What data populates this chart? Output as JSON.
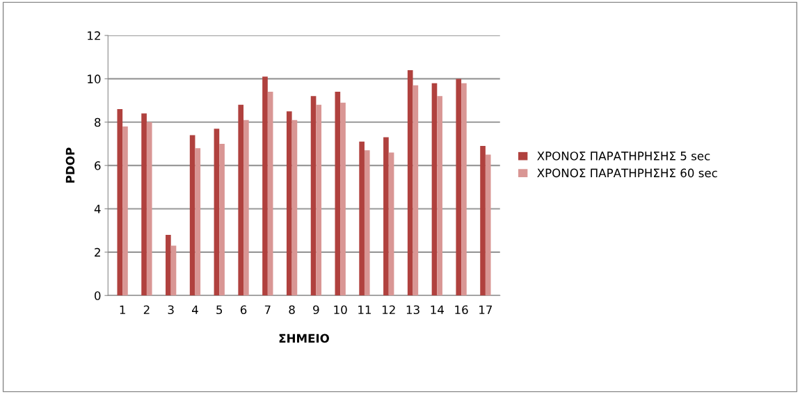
{
  "chart_data": {
    "type": "bar",
    "xlabel": "ΣΗΜΕΙΟ",
    "ylabel": "PDOP",
    "categories": [
      "1",
      "2",
      "3",
      "4",
      "5",
      "6",
      "7",
      "8",
      "9",
      "10",
      "11",
      "12",
      "13",
      "14",
      "16",
      "17"
    ],
    "series": [
      {
        "name": "ΧΡΟΝΟΣ ΠΑΡΑΤΗΡΗΣΗΣ 5 sec",
        "color": "#b0413e",
        "values": [
          8.6,
          8.4,
          2.8,
          7.4,
          7.7,
          8.8,
          10.1,
          8.5,
          9.2,
          9.4,
          7.1,
          7.3,
          10.4,
          9.8,
          10.0,
          6.9
        ]
      },
      {
        "name": "ΧΡΟΝΟΣ ΠΑΡΑΤΗΡΗΣΗΣ 60 sec",
        "color": "#d99694",
        "values": [
          7.8,
          8.0,
          2.3,
          6.8,
          7.0,
          8.1,
          9.4,
          8.1,
          8.8,
          8.9,
          6.7,
          6.6,
          9.7,
          9.2,
          9.8,
          6.5
        ]
      }
    ],
    "ylim": [
      0,
      12
    ],
    "yticks": [
      0,
      2,
      4,
      6,
      8,
      10,
      12
    ],
    "grid": "y",
    "legend": "right"
  }
}
